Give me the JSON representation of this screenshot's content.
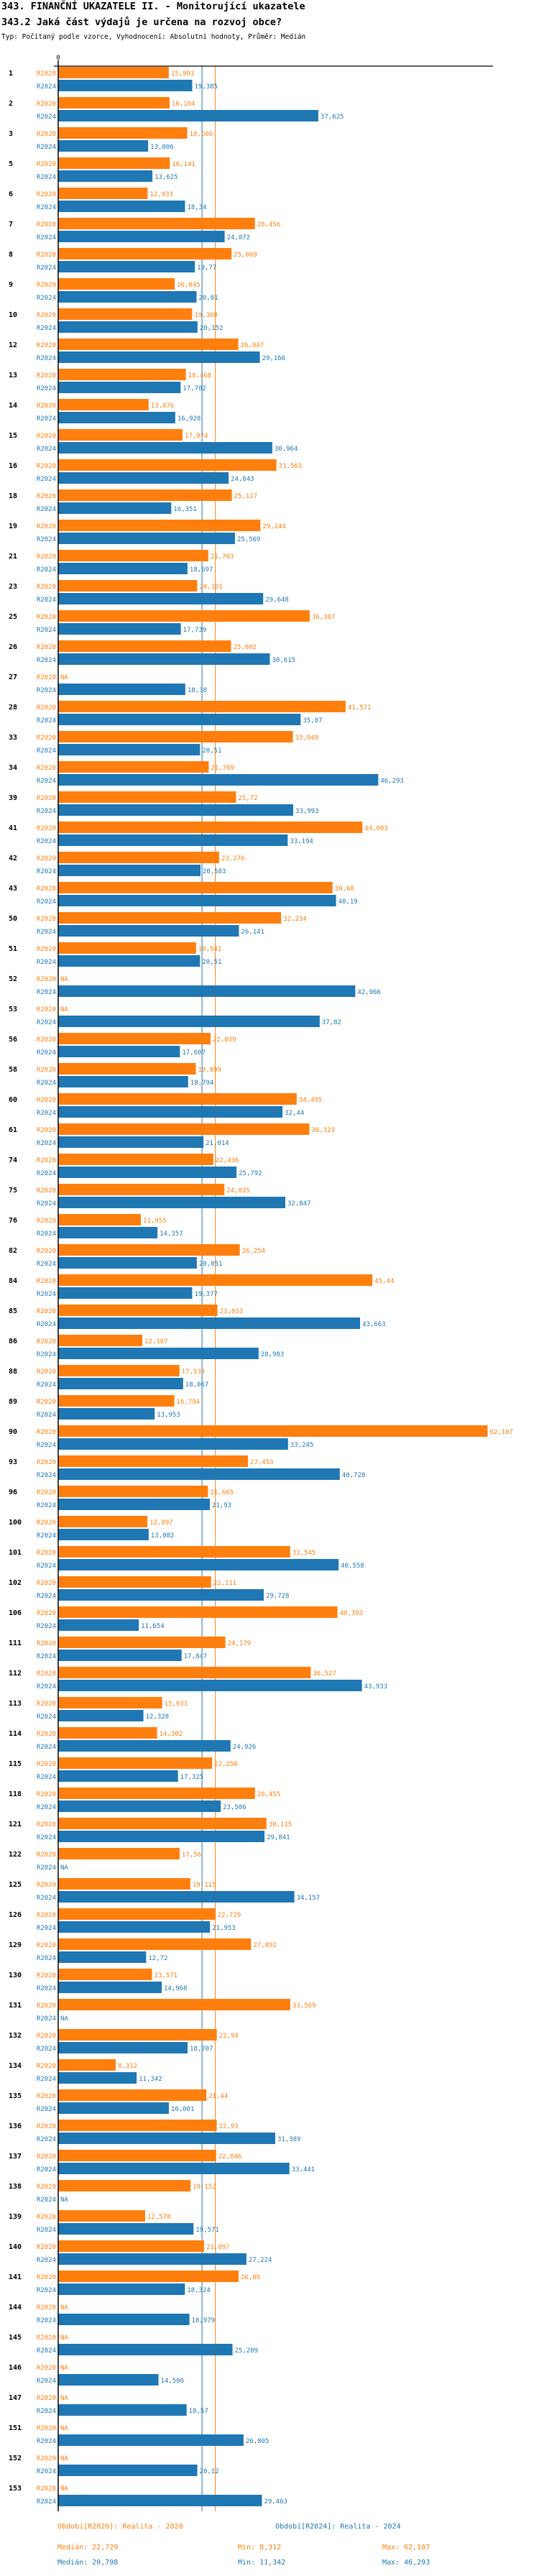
{
  "header": {
    "title": "343. FINANČNÍ UKAZATELE II. - Monitorující ukazatele",
    "question": "343.2 Jaká část výdajů je určena na rozvoj obce?",
    "subtitle": "Typ: Počítaný podle vzorce, Vyhodnocení: Absolutní hodnoty, Průměr: Medián"
  },
  "chart_data": {
    "type": "bar",
    "orientation": "horizontal",
    "title": "343.2 Jaká část výdajů je určena na rozvoj obce?",
    "xlabel": "",
    "ylabel": "",
    "x_tick_labels": [
      "0"
    ],
    "xlim": [
      0,
      62107
    ],
    "grid": false,
    "legend_position": "bottom",
    "na_label": "NA",
    "series": [
      {
        "name": "R2020",
        "label": "Období[R2020]: Realita - 2020",
        "color": "#ff7f0e",
        "median": 22.729,
        "median_label": "Medián: 22,729",
        "min_label": "Min: 8,312",
        "max_label": "Max: 62,107"
      },
      {
        "name": "R2024",
        "label": "Období[R2024]: Realita - 2024",
        "color": "#1f77b4",
        "median": 20.798,
        "median_label": "Medián: 20,798",
        "min_label": "Min: 11,342",
        "max_label": "Max: 46,293"
      }
    ],
    "categories": [
      "1",
      "2",
      "3",
      "5",
      "6",
      "7",
      "8",
      "9",
      "10",
      "12",
      "13",
      "14",
      "15",
      "16",
      "18",
      "19",
      "21",
      "23",
      "25",
      "26",
      "27",
      "28",
      "33",
      "34",
      "39",
      "41",
      "42",
      "43",
      "50",
      "51",
      "52",
      "53",
      "56",
      "58",
      "60",
      "61",
      "74",
      "75",
      "76",
      "82",
      "84",
      "85",
      "86",
      "88",
      "89",
      "90",
      "93",
      "96",
      "100",
      "101",
      "102",
      "106",
      "111",
      "112",
      "113",
      "114",
      "115",
      "118",
      "121",
      "122",
      "125",
      "126",
      "129",
      "130",
      "131",
      "132",
      "134",
      "135",
      "136",
      "137",
      "138",
      "139",
      "140",
      "141",
      "144",
      "145",
      "146",
      "147",
      "151",
      "152",
      "153"
    ],
    "values_R2020": [
      "15,993",
      "16,104",
      "18,666",
      "16,141",
      "12,933",
      "28,456",
      "25,069",
      "16,845",
      "19,368",
      "26,047",
      "18,468",
      "13,076",
      "17,974",
      "31,563",
      "25,117",
      "29,244",
      "21,703",
      "20,101",
      "36,367",
      "25,002",
      "NA",
      "41,571",
      "33,949",
      "21,769",
      "25,72",
      "44,003",
      "23,276",
      "39,68",
      "32,234",
      "19,941",
      "NA",
      "NA",
      "22,039",
      "19,899",
      "34,495",
      "36,323",
      "22,436",
      "24,035",
      "11,955",
      "26,254",
      "45,44",
      "23,033",
      "12,167",
      "17,533",
      "16,794",
      "62,107",
      "27,453",
      "21,665",
      "12,897",
      "33,545",
      "22,111",
      "40,393",
      "24,179",
      "36,527",
      "15,033",
      "14,302",
      "22,258",
      "28,455",
      "30,115",
      "17,56",
      "19,115",
      "22,729",
      "27,892",
      "13,571",
      "33,569",
      "22,94",
      "8,312",
      "21,44",
      "22,93",
      "22,846",
      "19,152",
      "12,578",
      "21,097",
      "26,09",
      "NA",
      "NA",
      "NA",
      "NA",
      "NA",
      "NA",
      "NA"
    ],
    "values_R2024": [
      "19,385",
      "37,625",
      "13,006",
      "13,625",
      "18,34",
      "24,072",
      "19,77",
      "20,01",
      "20,152",
      "29,166",
      "17,702",
      "16,928",
      "30,964",
      "24,643",
      "16,351",
      "25,569",
      "18,697",
      "29,648",
      "17,739",
      "30,615",
      "18,38",
      "35,07",
      "20,51",
      "46,293",
      "33,993",
      "33,194",
      "20,583",
      "40,19",
      "26,141",
      "20,51",
      "42,966",
      "37,82",
      "17,607",
      "18,794",
      "32,44",
      "21,014",
      "25,792",
      "32,847",
      "14,357",
      "20,051",
      "19,377",
      "43,663",
      "28,983",
      "18,067",
      "13,953",
      "33,245",
      "40,728",
      "21,93",
      "13,082",
      "40,558",
      "29,728",
      "11,654",
      "17,847",
      "43,933",
      "12,328",
      "24,926",
      "17,325",
      "23,506",
      "29,841",
      "NA",
      "34,157",
      "21,953",
      "12,72",
      "14,968",
      "NA",
      "18,707",
      "11,342",
      "16,001",
      "31,389",
      "33,441",
      "NA",
      "19,571",
      "27,224",
      "18,324",
      "18,979",
      "25,209",
      "14,506",
      "18,57",
      "26,805",
      "20,12",
      "29,463"
    ]
  }
}
